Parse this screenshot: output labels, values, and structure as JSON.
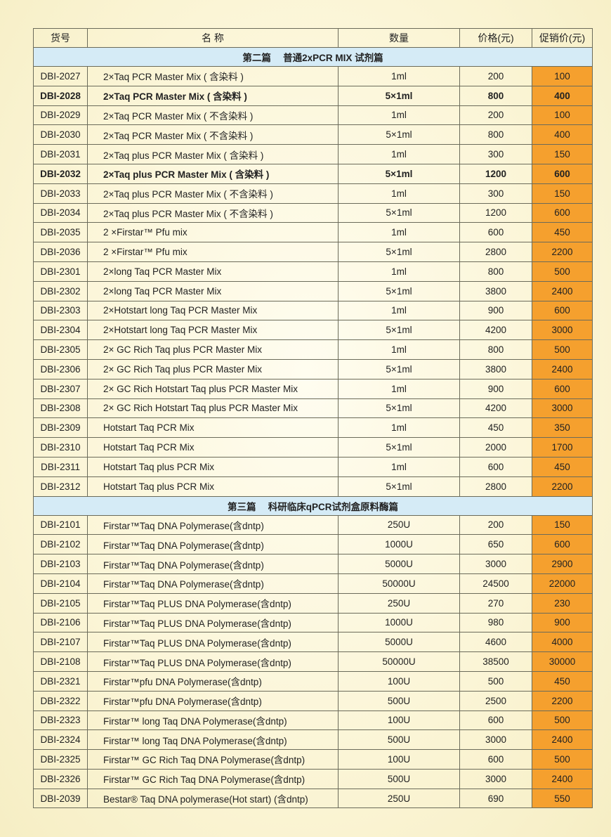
{
  "headers": [
    "货号",
    "名 称",
    "数量",
    "价格(元)",
    "促销价(元)"
  ],
  "colors": {
    "promo": "#f5a02e",
    "section": "#d5ebf6"
  },
  "sections": [
    {
      "title": "第二篇　 普通2xPCR MIX 试剂篇",
      "rows": [
        [
          "DBI-2027",
          "2×Taq PCR Master Mix ( 含染料 )",
          "1ml",
          "200",
          "100",
          false
        ],
        [
          "DBI-2028",
          "2×Taq PCR Master Mix ( 含染料 )",
          "5×1ml",
          "800",
          "400",
          true
        ],
        [
          "DBI-2029",
          "2×Taq PCR Master Mix ( 不含染料 )",
          "1ml",
          "200",
          "100",
          false
        ],
        [
          "DBI-2030",
          "2×Taq PCR Master Mix ( 不含染料 )",
          "5×1ml",
          "800",
          "400",
          false
        ],
        [
          "DBI-2031",
          "2×Taq plus PCR Master Mix ( 含染料 )",
          "1ml",
          "300",
          "150",
          false
        ],
        [
          "DBI-2032",
          "2×Taq plus PCR Master Mix ( 含染料 )",
          "5×1ml",
          "1200",
          "600",
          true
        ],
        [
          "DBI-2033",
          "2×Taq plus PCR Master Mix ( 不含染料 )",
          "1ml",
          "300",
          "150",
          false
        ],
        [
          "DBI-2034",
          "2×Taq plus PCR Master Mix ( 不含染料 )",
          "5×1ml",
          "1200",
          "600",
          false
        ],
        [
          "DBI-2035",
          "2 ×Firstar™ Pfu mix",
          "1ml",
          "600",
          "450",
          false
        ],
        [
          "DBI-2036",
          "2 ×Firstar™ Pfu mix",
          "5×1ml",
          "2800",
          "2200",
          false
        ],
        [
          "DBI-2301",
          "2×long Taq PCR Master Mix",
          "1ml",
          "800",
          "500",
          false
        ],
        [
          "DBI-2302",
          "2×long Taq PCR Master Mix",
          "5×1ml",
          "3800",
          "2400",
          false
        ],
        [
          "DBI-2303",
          "2×Hotstart long Taq PCR Master Mix",
          "1ml",
          "900",
          "600",
          false
        ],
        [
          "DBI-2304",
          "2×Hotstart long Taq PCR Master Mix",
          "5×1ml",
          "4200",
          "3000",
          false
        ],
        [
          "DBI-2305",
          "2× GC Rich Taq plus PCR Master Mix",
          "1ml",
          "800",
          "500",
          false
        ],
        [
          "DBI-2306",
          "2× GC Rich Taq plus PCR Master Mix",
          "5×1ml",
          "3800",
          "2400",
          false
        ],
        [
          "DBI-2307",
          "2× GC Rich Hotstart Taq plus PCR Master Mix",
          "1ml",
          "900",
          "600",
          false
        ],
        [
          "DBI-2308",
          "2× GC Rich Hotstart Taq plus PCR Master Mix",
          "5×1ml",
          "4200",
          "3000",
          false
        ],
        [
          "DBI-2309",
          "Hotstart Taq PCR Mix",
          "1ml",
          "450",
          "350",
          false
        ],
        [
          "DBI-2310",
          "Hotstart Taq PCR Mix",
          "5×1ml",
          "2000",
          "1700",
          false
        ],
        [
          "DBI-2311",
          "Hotstart Taq plus PCR Mix",
          "1ml",
          "600",
          "450",
          false
        ],
        [
          "DBI-2312",
          "Hotstart Taq plus PCR Mix",
          "5×1ml",
          "2800",
          "2200",
          false
        ]
      ]
    },
    {
      "title": "第三篇　 科研临床qPCR试剂盒原料酶篇",
      "rows": [
        [
          "DBI-2101",
          " Firstar™Taq DNA Polymerase(含dntp)",
          "250U",
          "200",
          "150",
          false
        ],
        [
          "DBI-2102",
          " Firstar™Taq DNA Polymerase(含dntp)",
          "1000U",
          "650",
          "600",
          false
        ],
        [
          "DBI-2103",
          " Firstar™Taq DNA Polymerase(含dntp)",
          "5000U",
          "3000",
          "2900",
          false
        ],
        [
          "DBI-2104",
          " Firstar™Taq DNA Polymerase(含dntp)",
          "50000U",
          "24500",
          "22000",
          false
        ],
        [
          "DBI-2105",
          " Firstar™Taq PLUS DNA Polymerase(含dntp)",
          "250U",
          "270",
          "230",
          false
        ],
        [
          "DBI-2106",
          " Firstar™Taq PLUS DNA Polymerase(含dntp)",
          "1000U",
          "980",
          "900",
          false
        ],
        [
          "DBI-2107",
          " Firstar™Taq PLUS DNA Polymerase(含dntp)",
          "5000U",
          "4600",
          "4000",
          false
        ],
        [
          "DBI-2108",
          " Firstar™Taq PLUS DNA Polymerase(含dntp)",
          "50000U",
          "38500",
          "30000",
          false
        ],
        [
          "DBI-2321",
          " Firstar™pfu DNA Polymerase(含dntp)",
          "100U",
          "500",
          "450",
          false
        ],
        [
          "DBI-2322",
          " Firstar™pfu DNA Polymerase(含dntp)",
          "500U",
          "2500",
          "2200",
          false
        ],
        [
          "DBI-2323",
          " Firstar™ long Taq DNA Polymerase(含dntp)",
          "100U",
          "600",
          "500",
          false
        ],
        [
          "DBI-2324",
          " Firstar™ long Taq DNA Polymerase(含dntp)",
          "500U",
          "3000",
          "2400",
          false
        ],
        [
          "DBI-2325",
          " Firstar™ GC Rich Taq DNA Polymerase(含dntp)",
          "100U",
          "600",
          "500",
          false
        ],
        [
          "DBI-2326",
          " Firstar™ GC Rich Taq DNA Polymerase(含dntp)",
          "500U",
          "3000",
          "2400",
          false
        ],
        [
          "DBI-2039",
          " Bestar® Taq DNA polymerase(Hot start) (含dntp)",
          "250U",
          "690",
          "550",
          false
        ]
      ]
    }
  ]
}
